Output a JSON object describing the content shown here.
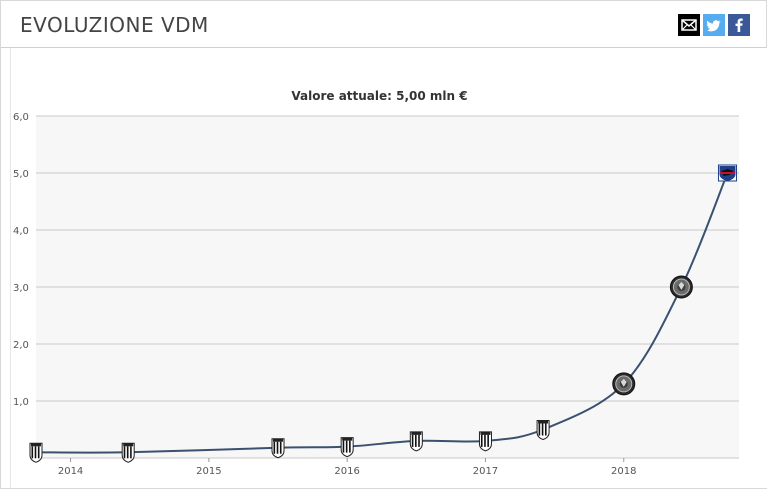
{
  "header": {
    "title": "EVOLUZIONE VDM",
    "share": [
      "email-icon",
      "twitter-icon",
      "facebook-icon"
    ]
  },
  "colors": {
    "line": "#3a5170",
    "plot_bg": "#f7f7f7",
    "grid": "#c8c8c8",
    "twitter": "#55acee",
    "facebook": "#3b5998"
  },
  "chart_data": {
    "type": "line",
    "title": "Valore attuale: 5,00 mln €",
    "xlabel": "",
    "ylabel": "",
    "x_tick_labels": [
      "2014",
      "2015",
      "2016",
      "2017",
      "2018"
    ],
    "y_tick_labels": [
      "1,0",
      "2,0",
      "3,0",
      "4,0",
      "5,0",
      "6,0"
    ],
    "ylim": [
      0,
      6
    ],
    "xlim": [
      "2013-10",
      "2018-11"
    ],
    "grid": true,
    "series": [
      {
        "x": [
          "2013-10",
          "2014-06",
          "2015-07",
          "2016-01",
          "2016-07",
          "2017-01",
          "2017-06",
          "2018-01",
          "2018-06",
          "2018-10"
        ],
        "values": [
          0.1,
          0.1,
          0.18,
          0.2,
          0.3,
          0.3,
          0.5,
          1.3,
          3.0,
          5.0
        ],
        "marker_icons": [
          "juventus-crest-icon",
          "juventus-crest-icon",
          "juventus-crest-icon",
          "juventus-crest-icon",
          "juventus-crest-icon",
          "juventus-crest-icon",
          "juventus-crest-icon",
          "club-crest-icon",
          "club-crest-icon",
          "sampdoria-crest-icon"
        ]
      }
    ]
  }
}
